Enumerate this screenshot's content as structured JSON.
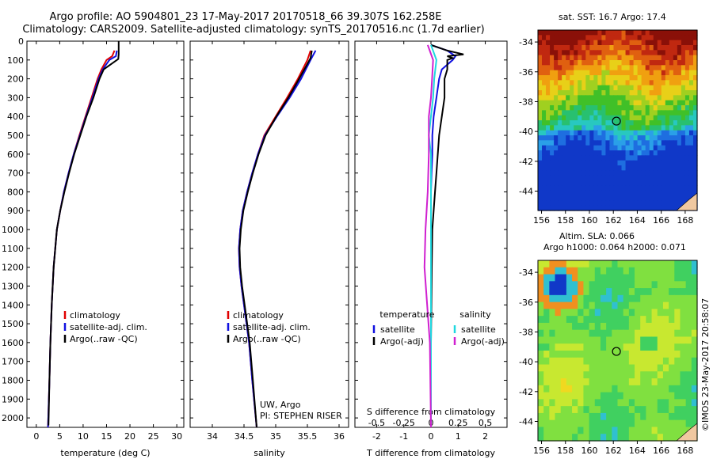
{
  "header": {
    "title_line1": "Argo profile: AO 5904801_23 17-May-2017 20170518_66 39.307S 162.258E",
    "title_line2": "Climatology: CARS2009. Satellite-adjusted climatology: synTS_20170516.nc (1.7d earlier)"
  },
  "colors": {
    "climatology": "#e00000",
    "satellite": "#1010e0",
    "argo": "#000000",
    "sat_salinity": "#20d8e0",
    "argo_salinity": "#d020d0"
  },
  "chart_data": [
    {
      "type": "line",
      "name": "temperature-profile",
      "xlabel": "temperature (deg C)",
      "ylabel": "",
      "xlim": [
        -2,
        31.5
      ],
      "ylim": [
        2050,
        0
      ],
      "xticks": [
        0,
        5,
        10,
        15,
        20,
        25,
        30
      ],
      "yticks": [
        0,
        100,
        200,
        300,
        400,
        500,
        600,
        700,
        800,
        900,
        1000,
        1100,
        1200,
        1300,
        1400,
        1500,
        1600,
        1700,
        1800,
        1900,
        2000
      ],
      "legend": [
        "climatology",
        "satellite-adj. clim.",
        "Argo(..raw -QC)"
      ],
      "series": [
        {
          "name": "climatology",
          "depth": [
            50,
            80,
            100,
            150,
            200,
            300,
            400,
            500,
            600,
            700,
            800,
            900,
            1000,
            1200,
            1400,
            1600,
            1800,
            2050
          ],
          "values": [
            16.7,
            16.2,
            15.0,
            13.9,
            13.1,
            11.8,
            10.5,
            9.2,
            8.0,
            6.9,
            5.9,
            5.1,
            4.4,
            3.7,
            3.3,
            3.0,
            2.8,
            2.5
          ]
        },
        {
          "name": "satellite-adj. clim.",
          "depth": [
            50,
            80,
            100,
            150,
            200,
            300,
            400,
            500,
            600,
            700,
            800,
            900,
            1000,
            1200,
            1400,
            1600,
            1800,
            2050
          ],
          "values": [
            17.2,
            17.0,
            15.6,
            14.2,
            13.3,
            12.0,
            10.6,
            9.3,
            8.0,
            6.9,
            5.9,
            5.1,
            4.4,
            3.7,
            3.3,
            3.0,
            2.8,
            2.5
          ]
        },
        {
          "name": "Argo(..raw -QC)",
          "depth": [
            0,
            70,
            95,
            150,
            200,
            300,
            400,
            500,
            600,
            700,
            800,
            900,
            1000,
            1200,
            1400,
            1600,
            1800,
            2040
          ],
          "values": [
            17.6,
            17.6,
            17.5,
            14.4,
            13.5,
            12.2,
            10.7,
            9.4,
            8.1,
            7.0,
            6.0,
            5.1,
            4.4,
            3.7,
            3.3,
            3.0,
            2.8,
            2.6
          ]
        }
      ]
    },
    {
      "type": "line",
      "name": "salinity-profile",
      "xlabel": "salinity",
      "xlim": [
        33.65,
        36.15
      ],
      "ylim": [
        2050,
        0
      ],
      "xticks": [
        34,
        34.5,
        35,
        35.5,
        36
      ],
      "legend": [
        "climatology",
        "satellite-adj. clim.",
        "Argo(..raw -QC)"
      ],
      "series": [
        {
          "name": "climatology",
          "depth": [
            50,
            100,
            200,
            300,
            400,
            500,
            600,
            700,
            800,
            900,
            1000,
            1100,
            1200,
            1300,
            1400,
            1600,
            1800,
            2050
          ],
          "values": [
            35.55,
            35.5,
            35.35,
            35.18,
            35.0,
            34.82,
            34.72,
            34.63,
            34.55,
            34.48,
            34.44,
            34.42,
            34.43,
            34.46,
            34.5,
            34.58,
            34.63,
            34.7
          ]
        },
        {
          "name": "satellite-adj. clim.",
          "depth": [
            50,
            100,
            200,
            300,
            400,
            500,
            600,
            700,
            800,
            900,
            1000,
            1100,
            1200,
            1300,
            1400,
            1600,
            1800,
            2050
          ],
          "values": [
            35.63,
            35.55,
            35.4,
            35.22,
            35.02,
            34.83,
            34.72,
            34.63,
            34.55,
            34.48,
            34.44,
            34.42,
            34.43,
            34.46,
            34.5,
            34.58,
            34.63,
            34.7
          ]
        },
        {
          "name": "Argo(..raw -QC)",
          "depth": [
            50,
            90,
            200,
            300,
            400,
            500,
            600,
            700,
            800,
            900,
            1000,
            1100,
            1200,
            1300,
            1400,
            1600,
            1800,
            2050
          ],
          "values": [
            35.57,
            35.55,
            35.37,
            35.2,
            35.01,
            34.84,
            34.73,
            34.64,
            34.56,
            34.49,
            34.45,
            34.43,
            34.44,
            34.47,
            34.51,
            34.59,
            34.64,
            34.7
          ]
        }
      ],
      "annotation_line1": "UW, Argo",
      "annotation_line2": "PI: STEPHEN RISER"
    },
    {
      "type": "line",
      "name": "difference-profile",
      "xlabel": "T difference from climatology",
      "xlabel_top": "S difference from climatology",
      "xlim": [
        -2.8,
        2.8
      ],
      "ylim": [
        2050,
        0
      ],
      "xticks_bottom": [
        -2,
        -1,
        0,
        1,
        2
      ],
      "xticks_top": [
        -0.5,
        -0.25,
        0,
        0.25,
        0.5
      ],
      "legend_temperature_title": "temperature",
      "legend_salinity_title": "salinity",
      "legend_items": [
        "satellite",
        "Argo(-adj)",
        "satellite",
        "Argo(-adj)"
      ],
      "series": [
        {
          "name": "T satellite",
          "depth": [
            20,
            50,
            80,
            100,
            150,
            200,
            300,
            400,
            500,
            600,
            700,
            800,
            900,
            1200,
            1600,
            2050
          ],
          "values": [
            0.0,
            0.6,
            0.9,
            0.8,
            0.4,
            0.3,
            0.2,
            0.1,
            0.05,
            0.05,
            0.02,
            0.0,
            0.0,
            0.0,
            0.0,
            0.0
          ]
        },
        {
          "name": "T Argo(-adj)",
          "depth": [
            20,
            50,
            70,
            80,
            90,
            100,
            150,
            200,
            300,
            400,
            500,
            600,
            700,
            800,
            900,
            1000,
            1200,
            1600,
            2050
          ],
          "values": [
            0.0,
            0.6,
            1.2,
            0.6,
            0.8,
            0.6,
            0.6,
            0.5,
            0.5,
            0.4,
            0.3,
            0.25,
            0.2,
            0.15,
            0.1,
            0.05,
            0.03,
            0.0,
            0.0
          ]
        },
        {
          "name": "S satellite",
          "depth": [
            20,
            100,
            200,
            300,
            400,
            500,
            600,
            800,
            1200,
            1600,
            2050
          ],
          "values": [
            0.0,
            0.05,
            0.03,
            0.02,
            0.0,
            -0.02,
            0.0,
            0.0,
            0.0,
            0.0,
            0.0
          ]
        },
        {
          "name": "S Argo(-adj)",
          "depth": [
            20,
            100,
            200,
            300,
            400,
            500,
            600,
            800,
            1000,
            1200,
            1600,
            2050
          ],
          "values": [
            -0.03,
            0.02,
            0.01,
            0.0,
            -0.02,
            -0.02,
            -0.02,
            -0.03,
            -0.05,
            -0.06,
            -0.01,
            0.0
          ]
        }
      ]
    },
    {
      "type": "heatmap",
      "name": "sst-map",
      "title": "sat. SST: 16.7  Argo: 17.4",
      "xlim": [
        155.7,
        169.0
      ],
      "ylim": [
        -45.3,
        -33.2
      ],
      "xticks": [
        156,
        158,
        160,
        162,
        164,
        166,
        168
      ],
      "yticks": [
        -34,
        -36,
        -38,
        -40,
        -42,
        -44
      ],
      "float_position": {
        "lon": 162.258,
        "lat": -39.307
      }
    },
    {
      "type": "heatmap",
      "name": "sla-map",
      "title_line1": "Altim. SLA: 0.066",
      "title_line2": "Argo h1000: 0.064  h2000: 0.071",
      "xlim": [
        155.7,
        169.0
      ],
      "ylim": [
        -45.3,
        -33.2
      ],
      "xticks": [
        156,
        158,
        160,
        162,
        164,
        166,
        168
      ],
      "yticks": [
        -34,
        -36,
        -38,
        -40,
        -42,
        -44
      ],
      "float_position": {
        "lon": 162.258,
        "lat": -39.307
      }
    }
  ],
  "footer": {
    "stamp": "©IMOS 23-May-2017 20:58:07"
  }
}
